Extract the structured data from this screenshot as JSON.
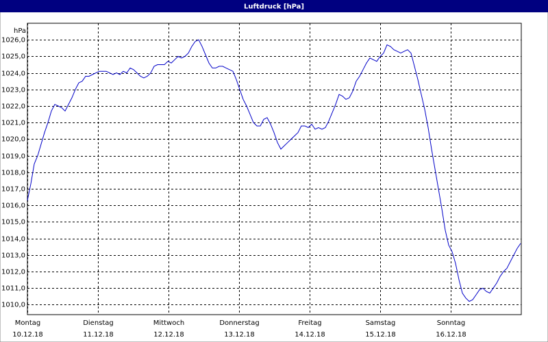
{
  "chart_data": {
    "type": "line",
    "title": "Luftdruck [hPa]",
    "ylabel": "hPa",
    "xlim": [
      0,
      7
    ],
    "xticks": [
      {
        "value": 0,
        "label": "Montag"
      },
      {
        "value": 1,
        "label": "Dienstag"
      },
      {
        "value": 2,
        "label": "Mittwoch"
      },
      {
        "value": 3,
        "label": "Donnerstag"
      },
      {
        "value": 4,
        "label": "Freitag"
      },
      {
        "value": 5,
        "label": "Samstag"
      },
      {
        "value": 6,
        "label": "Sonntag"
      }
    ],
    "xtick_dates": [
      "10.12.18",
      "11.12.18",
      "12.12.18",
      "13.12.18",
      "14.12.18",
      "15.12.18",
      "16.12.18"
    ],
    "ylim": [
      1009.4,
      1027.0
    ],
    "yticks": [
      {
        "value": 1010,
        "label": "1010,0"
      },
      {
        "value": 1011,
        "label": "1011,0"
      },
      {
        "value": 1012,
        "label": "1012,0"
      },
      {
        "value": 1013,
        "label": "1013,0"
      },
      {
        "value": 1014,
        "label": "1014,0"
      },
      {
        "value": 1015,
        "label": "1015,0"
      },
      {
        "value": 1016,
        "label": "1016,0"
      },
      {
        "value": 1017,
        "label": "1017,0"
      },
      {
        "value": 1018,
        "label": "1018,0"
      },
      {
        "value": 1019,
        "label": "1019,0"
      },
      {
        "value": 1020,
        "label": "1020,0"
      },
      {
        "value": 1021,
        "label": "1021,0"
      },
      {
        "value": 1022,
        "label": "1022,0"
      },
      {
        "value": 1023,
        "label": "1023,0"
      },
      {
        "value": 1024,
        "label": "1024,0"
      },
      {
        "value": 1025,
        "label": "1025,0"
      },
      {
        "value": 1026,
        "label": "1026,0"
      }
    ],
    "grid": true,
    "x": [
      0,
      0.049,
      0.097,
      0.146,
      0.194,
      0.243,
      0.291,
      0.34,
      0.388,
      0.437,
      0.485,
      0.534,
      0.583,
      0.631,
      0.68,
      0.728,
      0.777,
      0.825,
      0.874,
      0.922,
      0.971,
      1.019,
      1.068,
      1.117,
      1.165,
      1.214,
      1.262,
      1.311,
      1.359,
      1.408,
      1.456,
      1.505,
      1.553,
      1.602,
      1.65,
      1.699,
      1.748,
      1.796,
      1.845,
      1.942,
      1.99,
      2.039,
      2.087,
      2.136,
      2.184,
      2.233,
      2.282,
      2.33,
      2.379,
      2.427,
      2.476,
      2.524,
      2.573,
      2.621,
      2.67,
      2.718,
      2.767,
      2.816,
      2.864,
      2.913,
      2.961,
      3.01,
      3.058,
      3.107,
      3.155,
      3.204,
      3.252,
      3.301,
      3.35,
      3.398,
      3.447,
      3.495,
      3.544,
      3.592,
      3.641,
      3.689,
      3.738,
      3.786,
      3.835,
      3.883,
      3.932,
      3.981,
      4.029,
      4.078,
      4.126,
      4.175,
      4.223,
      4.272,
      4.32,
      4.369,
      4.417,
      4.466,
      4.515,
      4.563,
      4.612,
      4.66,
      4.709,
      4.757,
      4.806,
      4.854,
      4.903,
      4.951,
      5.0,
      5.049,
      5.097,
      5.146,
      5.194,
      5.243,
      5.291,
      5.34,
      5.388,
      5.437,
      5.485,
      5.534,
      5.583,
      5.631,
      5.68,
      5.728,
      5.777,
      5.825,
      5.874,
      5.922,
      5.971,
      6.019,
      6.068,
      6.117,
      6.165,
      6.214,
      6.262,
      6.311,
      6.359,
      6.408,
      6.456,
      6.505,
      6.553,
      6.602,
      6.65,
      6.699,
      6.748,
      6.796,
      6.845,
      6.893,
      6.942,
      6.99
    ],
    "series": [
      {
        "color": "#0000c8",
        "values": [
          1016.3,
          1017.3,
          1018.5,
          1019.0,
          1019.7,
          1020.4,
          1021.0,
          1021.7,
          1022.1,
          1022.0,
          1021.9,
          1021.7,
          1022.1,
          1022.5,
          1023.0,
          1023.4,
          1023.5,
          1023.8,
          1023.8,
          1023.9,
          1024.0,
          1024.1,
          1024.1,
          1024.1,
          1024.0,
          1023.9,
          1024.0,
          1023.9,
          1024.1,
          1024.0,
          1024.3,
          1024.2,
          1024.0,
          1023.8,
          1023.7,
          1023.8,
          1024.0,
          1024.4,
          1024.5,
          1024.5,
          1024.7,
          1024.6,
          1024.8,
          1025.0,
          1024.9,
          1025.0,
          1025.2,
          1025.6,
          1025.9,
          1026.0,
          1025.6,
          1025.1,
          1024.6,
          1024.3,
          1024.3,
          1024.4,
          1024.4,
          1024.3,
          1024.2,
          1024.1,
          1023.6,
          1023.0,
          1022.4,
          1022.0,
          1021.5,
          1021.0,
          1020.8,
          1020.8,
          1021.2,
          1021.3,
          1020.9,
          1020.4,
          1019.8,
          1019.4,
          1019.6,
          1019.8,
          1020.0,
          1020.2,
          1020.4,
          1020.8,
          1020.8,
          1020.7,
          1020.9,
          1020.6,
          1020.7,
          1020.6,
          1020.7,
          1021.1,
          1021.6,
          1022.1,
          1022.7,
          1022.6,
          1022.4,
          1022.5,
          1022.9,
          1023.5,
          1023.8,
          1024.2,
          1024.6,
          1024.9,
          1024.8,
          1024.7,
          1025.0,
          1025.2,
          1025.7,
          1025.6,
          1025.4,
          1025.3,
          1025.2,
          1025.3,
          1025.4,
          1025.2,
          1024.4,
          1023.6,
          1022.7,
          1021.8,
          1020.7,
          1019.4,
          1018.2,
          1017.0,
          1015.8,
          1014.5,
          1013.6,
          1013.2,
          1012.5,
          1011.5,
          1010.7,
          1010.4,
          1010.2,
          1010.3,
          1010.6,
          1010.9,
          1011.0,
          1010.8,
          1010.7,
          1011.0,
          1011.3,
          1011.7,
          1012.0,
          1012.2,
          1012.6,
          1013.0,
          1013.4,
          1013.7
        ]
      }
    ]
  }
}
